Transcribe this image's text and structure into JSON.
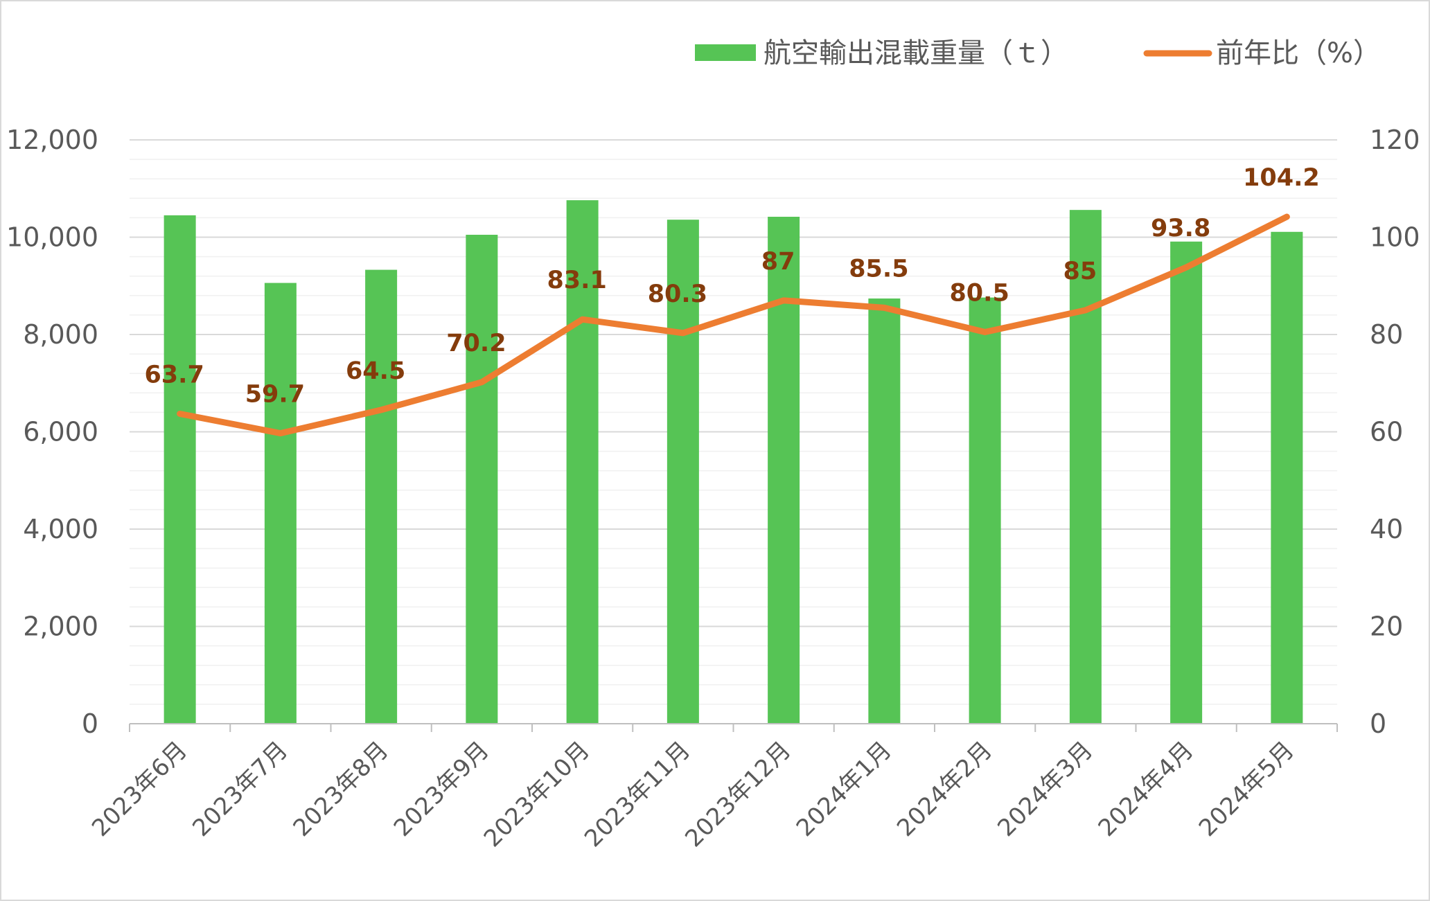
{
  "chart_data": {
    "type": "bar",
    "categories": [
      "2023年6月",
      "2023年7月",
      "2023年8月",
      "2023年9月",
      "2023年10月",
      "2023年11月",
      "2023年12月",
      "2024年1月",
      "2024年2月",
      "2024年3月",
      "2024年4月",
      "2024年5月"
    ],
    "series": [
      {
        "name": "航空輸出混載重量（ｔ）",
        "type": "bar",
        "axis": "left",
        "color": "#56c455",
        "values": [
          10450,
          9060,
          9330,
          10050,
          10760,
          10360,
          10420,
          8740,
          8760,
          10560,
          9910,
          10110
        ]
      },
      {
        "name": "前年比（%）",
        "type": "line",
        "axis": "right",
        "color": "#ed7d31",
        "values": [
          63.7,
          59.7,
          64.5,
          70.2,
          83.1,
          80.3,
          87,
          85.5,
          80.5,
          85,
          93.8,
          104.2
        ],
        "labels": [
          "63.7",
          "59.7",
          "64.5",
          "70.2",
          "83.1",
          "80.3",
          "87",
          "85.5",
          "80.5",
          "85",
          "93.8",
          "104.2"
        ]
      }
    ],
    "y_left": {
      "min": 0,
      "max": 12000,
      "ticks": [
        "0",
        "2,000",
        "4,000",
        "6,000",
        "8,000",
        "10,000",
        "12,000"
      ]
    },
    "y_right": {
      "min": 0,
      "max": 120,
      "ticks": [
        "0",
        "20",
        "40",
        "60",
        "80",
        "100",
        "120"
      ]
    },
    "grid": true,
    "legend_position": "top-right"
  }
}
